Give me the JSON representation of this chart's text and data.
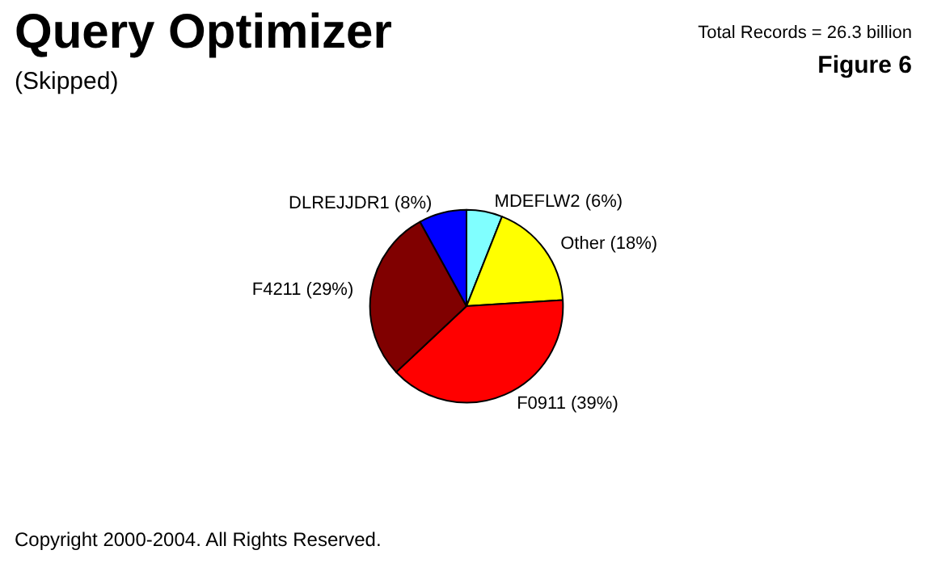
{
  "chart_data": {
    "type": "pie",
    "title": "Query Optimizer",
    "subtitle": "(Skipped)",
    "categories": [
      "MDEFLW2 (6%)",
      "Other (18%)",
      "F0911 (39%)",
      "F4211 (29%)",
      "DLREJJDR1 (8%)"
    ],
    "values": [
      6,
      18,
      39,
      29,
      8
    ],
    "colors": [
      "#80ffff",
      "#ffff00",
      "#ff0000",
      "#800000",
      "#0000ff"
    ],
    "annotations": [
      "Total Records = 26.3 billion",
      "Figure 6",
      "Copyright 2000-2004. All Rights Reserved."
    ],
    "legend": false
  }
}
